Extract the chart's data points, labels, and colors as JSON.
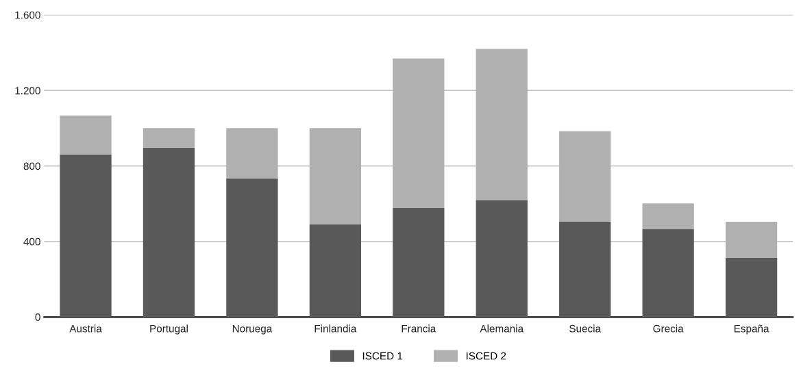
{
  "chart_data": {
    "type": "bar",
    "stacked": true,
    "categories": [
      "Austria",
      "Portugal",
      "Noruega",
      "Finlandia",
      "Francia",
      "Alemania",
      "Suecia",
      "Grecia",
      "España"
    ],
    "series": [
      {
        "name": "ISCED 1",
        "color": "#595959",
        "values": [
          860,
          897,
          735,
          490,
          577,
          620,
          505,
          465,
          313
        ]
      },
      {
        "name": "ISCED 2",
        "color": "#b0b0b0",
        "values": [
          207,
          103,
          265,
          510,
          792,
          800,
          479,
          137,
          192
        ]
      }
    ],
    "ylim": [
      0,
      1600
    ],
    "yticks": [
      0,
      {
        "value": 400,
        "label": "400"
      },
      {
        "value": 800,
        "label": "800"
      },
      {
        "value": 1200,
        "label": "1.200"
      },
      {
        "value": 1600,
        "label": "1.600"
      }
    ],
    "grid": "y",
    "legend": "bottom"
  }
}
